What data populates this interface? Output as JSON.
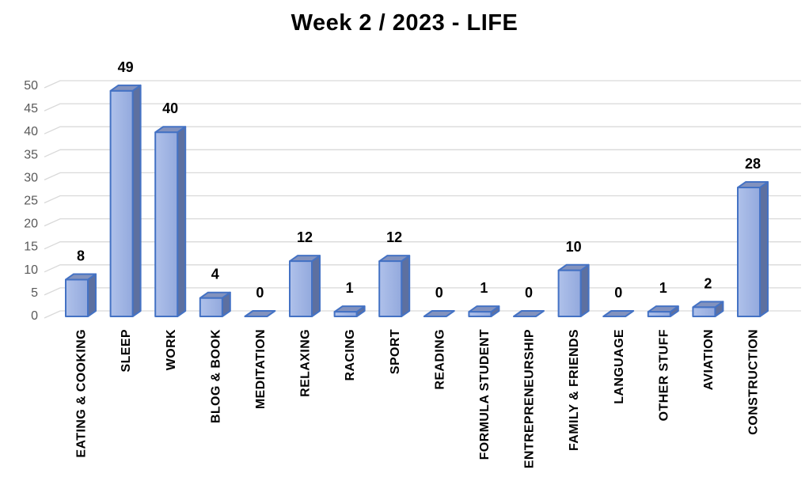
{
  "title": "Week 2 / 2023 - LIFE",
  "colors": {
    "background": "#FFFFFF",
    "title_text": "#000000",
    "gridline": "#D9D9D9",
    "axis_tick_text": "#595959",
    "category_text": "#000000",
    "data_label_text": "#000000",
    "bar_border": "#4472C4",
    "bar_front_light": "#AFC1EA",
    "bar_front_dark": "#93A9DD",
    "bar_top": "#8292BE",
    "bar_side": "#5D70A0"
  },
  "chart_data": {
    "type": "bar",
    "style": "3d-column",
    "title": "Week 2 / 2023 - LIFE",
    "xlabel": "",
    "ylabel": "",
    "legend": "none",
    "grid": true,
    "data_labels": true,
    "ylim": [
      0,
      50
    ],
    "y_ticks": [
      0,
      5,
      10,
      15,
      20,
      25,
      30,
      35,
      40,
      45,
      50
    ],
    "categories": [
      "EATING & COOKING",
      "SLEEP",
      "WORK",
      "BLOG & BOOK",
      "MEDITATION",
      "RELAXING",
      "RACING",
      "SPORT",
      "READING",
      "FORMULA STUDENT",
      "ENTREPRENEURSHIP",
      "FAMILY & FRIENDS",
      "LANGUAGE",
      "OTHER STUFF",
      "AVIATION",
      "CONSTRUCTION"
    ],
    "values": [
      8,
      49,
      40,
      4,
      0,
      12,
      1,
      12,
      0,
      1,
      0,
      10,
      0,
      1,
      2,
      28
    ]
  }
}
